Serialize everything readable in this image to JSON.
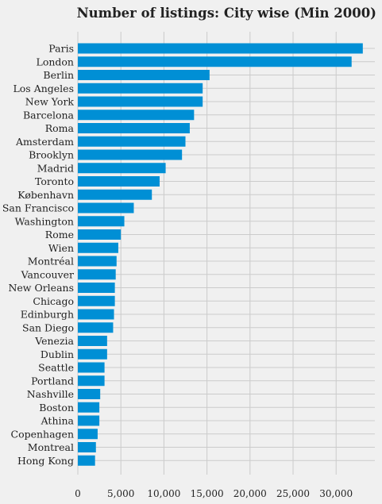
{
  "chart_data": {
    "type": "bar",
    "orientation": "horizontal",
    "title": "Number of listings: City wise (Min 2000)",
    "xlabel": "",
    "ylabel": "",
    "xlim": [
      0,
      34500
    ],
    "xticks": [
      0,
      5000,
      10000,
      15000,
      20000,
      25000,
      30000
    ],
    "xtick_labels": [
      "0",
      "5,000",
      "10,000",
      "15,000",
      "20,000",
      "25,000",
      "30,000"
    ],
    "grid": true,
    "bar_color": "#008fd5",
    "background": "#f0f0f0",
    "categories": [
      "Paris",
      "London",
      "Berlin",
      "Los Angeles",
      "New York",
      "Barcelona",
      "Roma",
      "Amsterdam",
      "Brooklyn",
      "Madrid",
      "Toronto",
      "København",
      "San Francisco",
      "Washington",
      "Rome",
      "Wien",
      "Montréal",
      "Vancouver",
      "New Orleans",
      "Chicago",
      "Edinburgh",
      "San Diego",
      "Venezia",
      "Dublin",
      "Seattle",
      "Portland",
      "Nashville",
      "Boston",
      "Athina",
      "Copenhagen",
      "Montreal",
      "Hong Kong"
    ],
    "values": [
      33100,
      31800,
      15300,
      14500,
      14500,
      13500,
      13000,
      12500,
      12100,
      10200,
      9500,
      8600,
      6500,
      5400,
      5000,
      4700,
      4500,
      4400,
      4300,
      4300,
      4200,
      4100,
      3400,
      3400,
      3100,
      3100,
      2600,
      2500,
      2500,
      2300,
      2100,
      2000
    ]
  }
}
